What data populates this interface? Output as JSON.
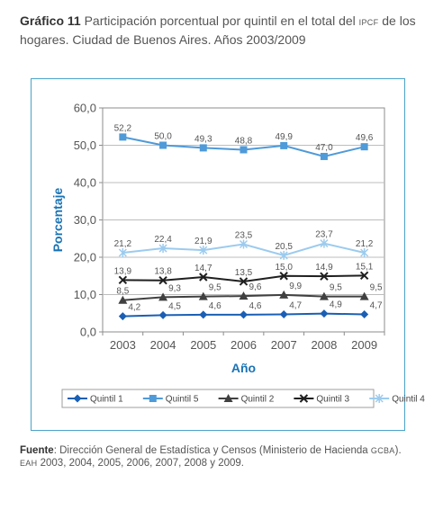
{
  "header": {
    "label": "Gráfico 11",
    "text_pre": "Participación porcentual por quintil en el total del",
    "abbr": "IPCF",
    "text_post": "de los hogares. Ciudad de Buenos Aires. Años 2003/2009"
  },
  "source": {
    "label": "Fuente",
    "text_pre": ": Dirección General de Estadística y Censos (Ministerio de Hacienda",
    "abbr1": "GCBA",
    "text_mid": ").",
    "abbr2": "EAH",
    "text_post": "2003, 2004, 2005, 2006, 2007, 2008 y 2009."
  },
  "chart_data": {
    "type": "line",
    "xlabel": "Año",
    "ylabel": "Porcentaje",
    "ylim": [
      0,
      60
    ],
    "yticks": [
      "0,0",
      "10,0",
      "20,0",
      "30,0",
      "40,0",
      "50,0",
      "60,0"
    ],
    "categories": [
      "2003",
      "2004",
      "2005",
      "2006",
      "2007",
      "2008",
      "2009"
    ],
    "grid": true,
    "legend_position": "bottom",
    "series": [
      {
        "name": "Quintil 1",
        "color": "#1a5fb4",
        "marker": "diamond",
        "values": [
          4.2,
          4.5,
          4.6,
          4.6,
          4.7,
          4.9,
          4.7
        ],
        "labels": [
          "4,2",
          "4,5",
          "4,6",
          "4,6",
          "4,7",
          "4,9",
          "4,7"
        ]
      },
      {
        "name": "Quintil 5",
        "color": "#4f9ad8",
        "marker": "square",
        "values": [
          52.2,
          50.0,
          49.3,
          48.8,
          49.9,
          47.0,
          49.6
        ],
        "labels": [
          "52,2",
          "50,0",
          "49,3",
          "48,8",
          "49,9",
          "47,0",
          "49,6"
        ]
      },
      {
        "name": "Quintil 2",
        "color": "#404040",
        "marker": "triangle",
        "values": [
          8.5,
          9.3,
          9.5,
          9.6,
          9.9,
          9.5,
          9.5
        ],
        "labels": [
          "8,5",
          "9,3",
          "9,5",
          "9,6",
          "9,9",
          "9,5",
          "9,5"
        ]
      },
      {
        "name": "Quintil 3",
        "color": "#1f1f1f",
        "marker": "x",
        "values": [
          13.9,
          13.8,
          14.7,
          13.5,
          15.0,
          14.9,
          15.1
        ],
        "labels": [
          "13,9",
          "13,8",
          "14,7",
          "13,5",
          "15,0",
          "14,9",
          "15,1"
        ]
      },
      {
        "name": "Quintil 4",
        "color": "#9ccbee",
        "marker": "asterisk",
        "values": [
          21.2,
          22.4,
          21.9,
          23.5,
          20.5,
          23.7,
          21.2
        ],
        "labels": [
          "21,2",
          "22,4",
          "21,9",
          "23,5",
          "20,5",
          "23,7",
          "21,2"
        ]
      }
    ]
  }
}
